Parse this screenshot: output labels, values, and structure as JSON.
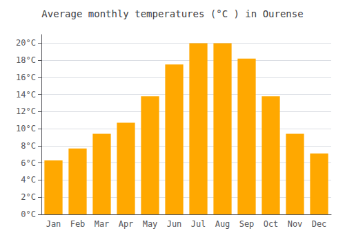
{
  "chart_data": {
    "type": "bar",
    "title": "Average monthly temperatures (°C ) in Ourense",
    "categories": [
      "Jan",
      "Feb",
      "Mar",
      "Apr",
      "May",
      "Jun",
      "Jul",
      "Aug",
      "Sep",
      "Oct",
      "Nov",
      "Dec"
    ],
    "values": [
      6.3,
      7.7,
      9.4,
      10.7,
      13.8,
      17.5,
      20.0,
      20.0,
      18.2,
      13.8,
      9.4,
      7.1
    ],
    "color": "#FFA800",
    "ylim": [
      0,
      21
    ],
    "yticks": [
      {
        "value": 0,
        "label": "0°C"
      },
      {
        "value": 2,
        "label": "2°C"
      },
      {
        "value": 4,
        "label": "4°C"
      },
      {
        "value": 6,
        "label": "6°C"
      },
      {
        "value": 8,
        "label": "8°C"
      },
      {
        "value": 10,
        "label": "10°C"
      },
      {
        "value": 12,
        "label": "12°C"
      },
      {
        "value": 14,
        "label": "14°C"
      },
      {
        "value": 16,
        "label": "16°C"
      },
      {
        "value": 18,
        "label": "18°C"
      },
      {
        "value": 20,
        "label": "20°C"
      }
    ],
    "grid": true
  }
}
